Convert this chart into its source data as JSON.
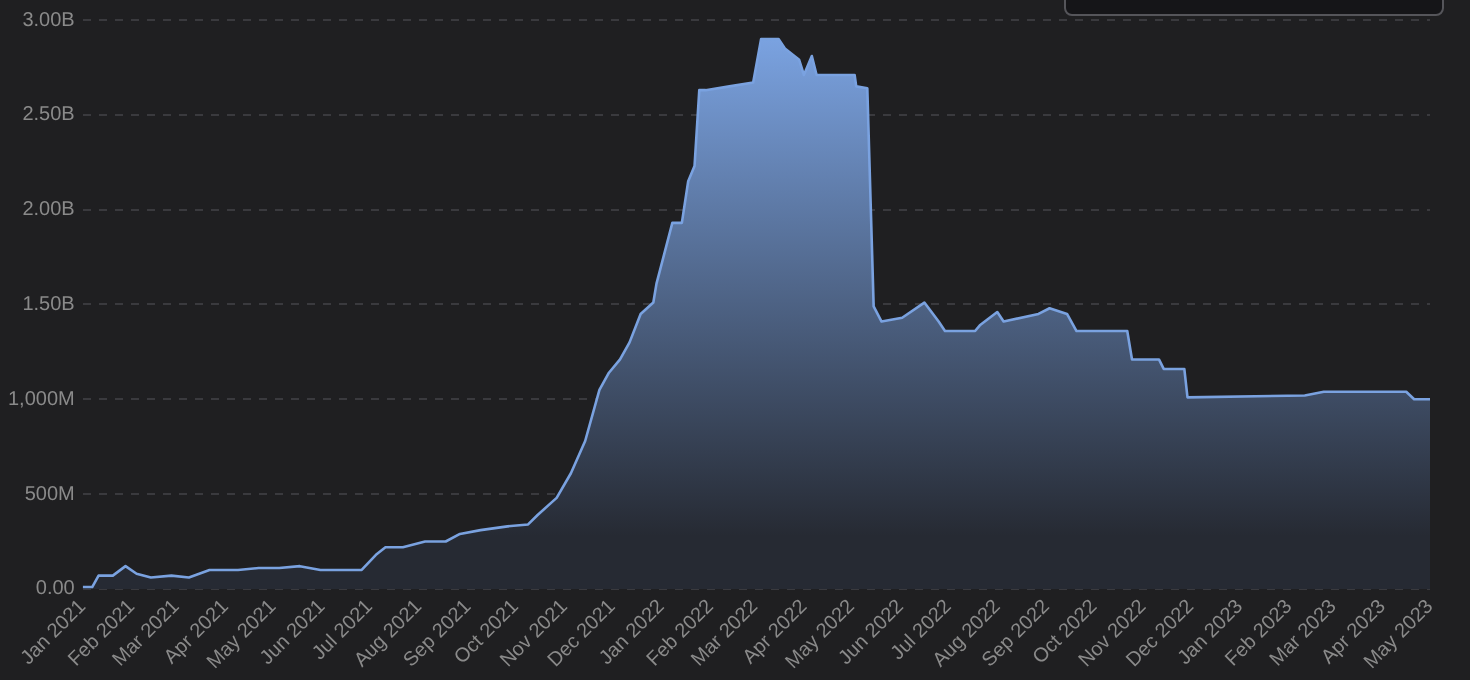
{
  "chart_data": {
    "type": "area",
    "x": [
      "2021-01-01",
      "2021-01-07",
      "2021-01-11",
      "2021-01-20",
      "2021-01-28",
      "2021-02-04",
      "2021-02-13",
      "2021-02-26",
      "2021-03-09",
      "2021-03-22",
      "2021-04-09",
      "2021-04-22",
      "2021-05-05",
      "2021-05-18",
      "2021-05-31",
      "2021-06-13",
      "2021-06-26",
      "2021-07-05",
      "2021-07-11",
      "2021-07-22",
      "2021-08-05",
      "2021-08-18",
      "2021-08-27",
      "2021-09-09",
      "2021-09-26",
      "2021-10-09",
      "2021-10-15",
      "2021-10-27",
      "2021-11-05",
      "2021-11-14",
      "2021-11-23",
      "2021-11-29",
      "2021-12-06",
      "2021-12-12",
      "2021-12-19",
      "2021-12-27",
      "2021-12-29",
      "2022-01-08",
      "2022-01-14",
      "2022-01-18",
      "2022-01-22",
      "2022-01-25",
      "2022-01-29",
      "2022-02-13",
      "2022-02-28",
      "2022-03-05",
      "2022-03-16",
      "2022-03-20",
      "2022-03-29",
      "2022-04-01",
      "2022-04-06",
      "2022-04-09",
      "2022-05-03",
      "2022-05-04",
      "2022-05-11",
      "2022-05-15",
      "2022-05-20",
      "2022-06-02",
      "2022-06-16",
      "2022-06-25",
      "2022-06-29",
      "2022-07-18",
      "2022-07-21",
      "2022-08-01",
      "2022-08-05",
      "2022-08-27",
      "2022-09-03",
      "2022-09-14",
      "2022-09-20",
      "2022-10-22",
      "2022-10-25",
      "2022-11-11",
      "2022-11-14",
      "2022-11-27",
      "2022-11-29",
      "2023-02-11",
      "2023-02-23",
      "2023-04-16",
      "2023-04-21",
      "2023-05-01"
    ],
    "series": [
      {
        "color": "#7aa2e0",
        "values": [
          10000000,
          10000000,
          70000000,
          70000000,
          120000000,
          80000000,
          60000000,
          70000000,
          60000000,
          100000000,
          100000000,
          110000000,
          110000000,
          120000000,
          100000000,
          100000000,
          100000000,
          180000000,
          220000000,
          220000000,
          250000000,
          250000000,
          290000000,
          310000000,
          330000000,
          340000000,
          390000000,
          480000000,
          610000000,
          780000000,
          1050000000,
          1140000000,
          1210000000,
          1300000000,
          1450000000,
          1510000000,
          1610000000,
          1930000000,
          1930000000,
          2150000000,
          2230000000,
          2630000000,
          2630000000,
          2650000000,
          2670000000,
          2900000000,
          2900000000,
          2850000000,
          2790000000,
          2710000000,
          2810000000,
          2710000000,
          2710000000,
          2650000000,
          2640000000,
          1490000000,
          1410000000,
          1430000000,
          1510000000,
          1410000000,
          1360000000,
          1360000000,
          1390000000,
          1460000000,
          1410000000,
          1450000000,
          1480000000,
          1450000000,
          1360000000,
          1360000000,
          1210000000,
          1210000000,
          1160000000,
          1160000000,
          1010000000,
          1020000000,
          1040000000,
          1040000000,
          1000000000,
          1000000000
        ]
      }
    ],
    "xlim": [
      "2021-01-01",
      "2023-05-01"
    ],
    "xticks": [
      {
        "value": "2021-01-01",
        "label": "Jan 2021"
      },
      {
        "value": "2021-02-01",
        "label": "Feb 2021"
      },
      {
        "value": "2021-03-01",
        "label": "Mar 2021"
      },
      {
        "value": "2021-04-01",
        "label": "Apr 2021"
      },
      {
        "value": "2021-05-01",
        "label": "May 2021"
      },
      {
        "value": "2021-06-01",
        "label": "Jun 2021"
      },
      {
        "value": "2021-07-01",
        "label": "Jul 2021"
      },
      {
        "value": "2021-08-01",
        "label": "Aug 2021"
      },
      {
        "value": "2021-09-01",
        "label": "Sep 2021"
      },
      {
        "value": "2021-10-01",
        "label": "Oct 2021"
      },
      {
        "value": "2021-11-01",
        "label": "Nov 2021"
      },
      {
        "value": "2021-12-01",
        "label": "Dec 2021"
      },
      {
        "value": "2022-01-01",
        "label": "Jan 2022"
      },
      {
        "value": "2022-02-01",
        "label": "Feb 2022"
      },
      {
        "value": "2022-03-01",
        "label": "Mar 2022"
      },
      {
        "value": "2022-04-01",
        "label": "Apr 2022"
      },
      {
        "value": "2022-05-01",
        "label": "May 2022"
      },
      {
        "value": "2022-06-01",
        "label": "Jun 2022"
      },
      {
        "value": "2022-07-01",
        "label": "Jul 2022"
      },
      {
        "value": "2022-08-01",
        "label": "Aug 2022"
      },
      {
        "value": "2022-09-01",
        "label": "Sep 2022"
      },
      {
        "value": "2022-10-01",
        "label": "Oct 2022"
      },
      {
        "value": "2022-11-01",
        "label": "Nov 2022"
      },
      {
        "value": "2022-12-01",
        "label": "Dec 2022"
      },
      {
        "value": "2023-01-01",
        "label": "Jan 2023"
      },
      {
        "value": "2023-02-01",
        "label": "Feb 2023"
      },
      {
        "value": "2023-03-01",
        "label": "Mar 2023"
      },
      {
        "value": "2023-04-01",
        "label": "Apr 2023"
      },
      {
        "value": "2023-05-01",
        "label": "May 2023"
      }
    ],
    "ylim": [
      0,
      3000000000
    ],
    "yticks": [
      {
        "value": 0,
        "label": "0.00"
      },
      {
        "value": 500000000,
        "label": "500M"
      },
      {
        "value": 1000000000,
        "label": "1,000M"
      },
      {
        "value": 1500000000,
        "label": "1.50B"
      },
      {
        "value": 2000000000,
        "label": "2.00B"
      },
      {
        "value": 2500000000,
        "label": "2.50B"
      },
      {
        "value": 3000000000,
        "label": "3.00B"
      }
    ],
    "grid": "y",
    "legend": false,
    "marker": "none",
    "line_style": "solid"
  }
}
